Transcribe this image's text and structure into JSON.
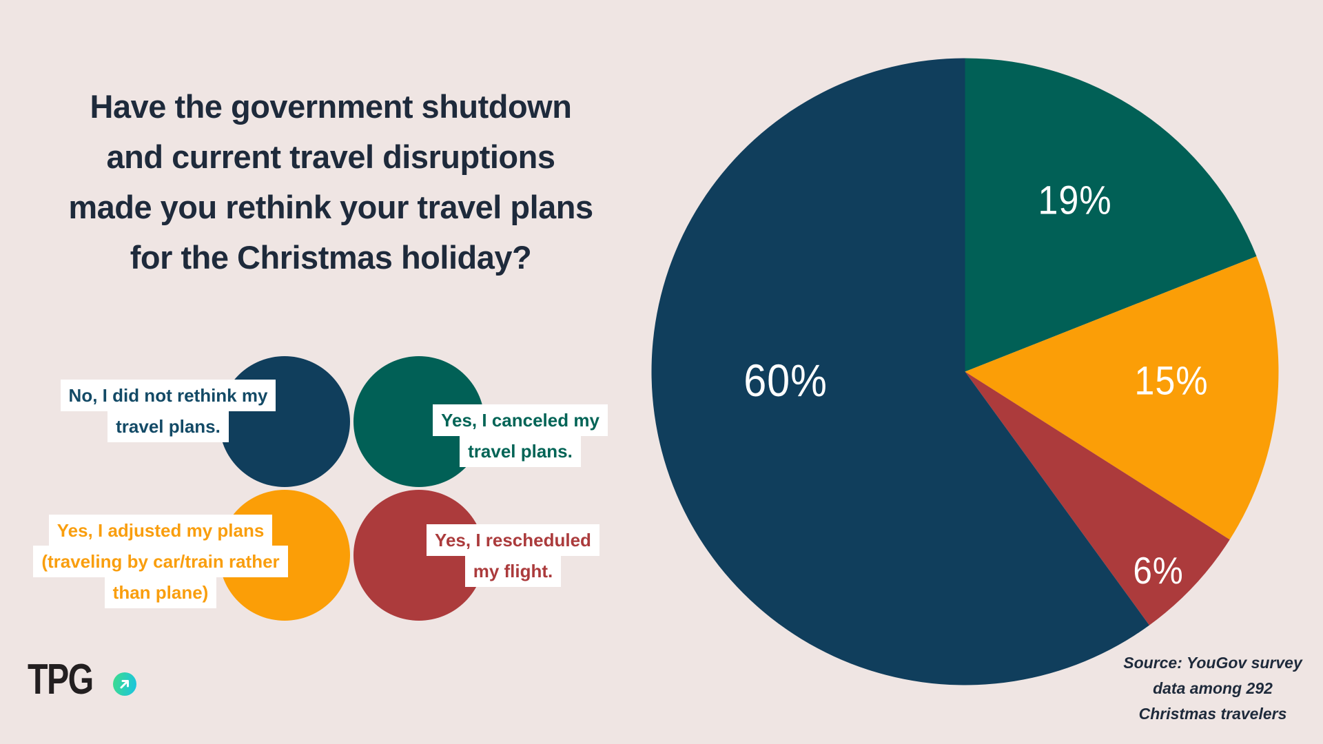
{
  "background_color": "#EFE5E3",
  "title": {
    "text": "Have the government shutdown\nand current travel disruptions\nmade you rethink your travel plans\nfor the Christmas holiday?",
    "color": "#1E2A3B"
  },
  "legend": {
    "items": [
      {
        "label": "No, I did not rethink my\ntravel plans.",
        "color": "#103E5C",
        "text_color": "#134A66"
      },
      {
        "label": "Yes, I canceled my\ntravel plans.",
        "color": "#016056",
        "text_color": "#026456"
      },
      {
        "label": "Yes, I adjusted my plans\n(traveling by car/train rather\nthan plane)",
        "color": "#FB9E07",
        "text_color": "#F99E0E"
      },
      {
        "label": "Yes, I rescheduled\nmy flight.",
        "color": "#AC3B3C",
        "text_color": "#AB3B3C"
      }
    ]
  },
  "chart_data": {
    "type": "pie",
    "title": "Have the government shutdown and current travel disruptions made you rethink your travel plans for the Christmas holiday?",
    "start_angle_deg": 0,
    "direction": "clockwise",
    "value_labels": "inside",
    "legend_position": "left",
    "slices": [
      {
        "label": "Yes, I canceled my travel plans.",
        "value": 19,
        "pct_label": "19%",
        "color": "#016056"
      },
      {
        "label": "Yes, I adjusted my plans (traveling by car/train rather than plane)",
        "value": 15,
        "pct_label": "15%",
        "color": "#FB9E07"
      },
      {
        "label": "Yes, I rescheduled my flight.",
        "value": 6,
        "pct_label": "6%",
        "color": "#AC3B3C"
      },
      {
        "label": "No, I did not rethink my travel plans.",
        "value": 60,
        "pct_label": "60%",
        "color": "#103E5C"
      }
    ]
  },
  "source": {
    "text": "Source: YouGov survey\ndata among 292\nChristmas travelers"
  },
  "logo": {
    "text": "TPG",
    "icon": "up-right-arrow-icon",
    "gradient_start": "#3EDC8B",
    "gradient_end": "#19C3E3"
  }
}
